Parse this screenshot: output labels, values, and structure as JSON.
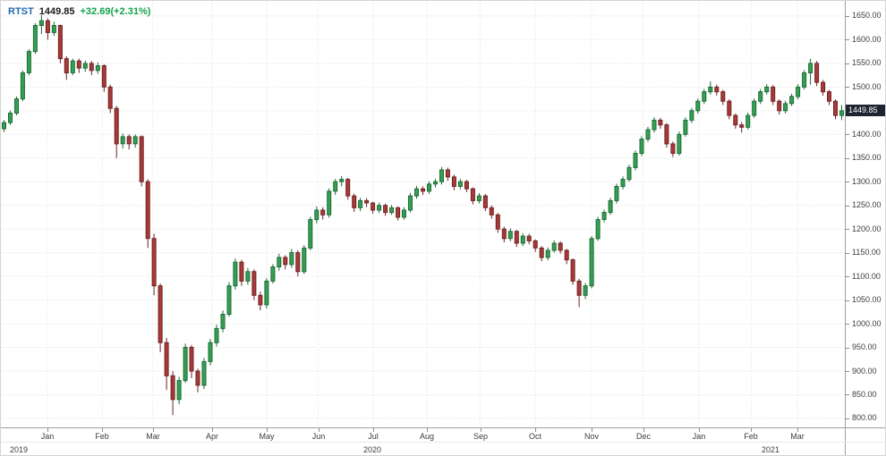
{
  "header": {
    "symbol": "RTST",
    "last": "1449.85",
    "change": "+32.69(+2.31%)"
  },
  "price_badge": "1449.85",
  "chart_data": {
    "type": "candlestick",
    "symbol": "RTST",
    "title": "RTST daily candlestick chart",
    "last_price": 1449.85,
    "change": "+32.69(+2.31%)",
    "grid": "dotted",
    "ylim": [
      781,
      1682
    ],
    "y_ticks": [
      1650,
      1600,
      1550,
      1500,
      1450,
      1400,
      1350,
      1300,
      1250,
      1200,
      1150,
      1100,
      1050,
      1000,
      950,
      900,
      850,
      800
    ],
    "x_ticks": [
      {
        "label": "Jan",
        "t": 0.055
      },
      {
        "label": "Feb",
        "t": 0.12
      },
      {
        "label": "Mar",
        "t": 0.18
      },
      {
        "label": "Apr",
        "t": 0.25
      },
      {
        "label": "May",
        "t": 0.315
      },
      {
        "label": "Jun",
        "t": 0.376
      },
      {
        "label": "Jul",
        "t": 0.441
      },
      {
        "label": "Aug",
        "t": 0.505
      },
      {
        "label": "Sep",
        "t": 0.568
      },
      {
        "label": "Oct",
        "t": 0.633
      },
      {
        "label": "Nov",
        "t": 0.7
      },
      {
        "label": "Dec",
        "t": 0.761
      },
      {
        "label": "Jan",
        "t": 0.827
      },
      {
        "label": "Feb",
        "t": 0.889
      },
      {
        "label": "Mar",
        "t": 0.944
      }
    ],
    "year_labels": [
      {
        "label": "2019",
        "t": 0.021
      },
      {
        "label": "2020",
        "t": 0.44
      },
      {
        "label": "2021",
        "t": 0.912
      }
    ],
    "colors": {
      "up": "#35a053",
      "up_border": "#1d6b35",
      "down": "#aa3a3a",
      "down_border": "#6e2222",
      "grid": "#dedede",
      "axis_text": "#3c3c3c",
      "symbol": "#1f66b5",
      "change": "#12a14b",
      "badge_bg": "#1b2430",
      "badge_text": "#ffffff"
    },
    "candles": [
      [
        1412,
        1430,
        1405,
        1425
      ],
      [
        1425,
        1450,
        1420,
        1445
      ],
      [
        1445,
        1480,
        1440,
        1475
      ],
      [
        1475,
        1535,
        1470,
        1530
      ],
      [
        1530,
        1580,
        1525,
        1575
      ],
      [
        1575,
        1635,
        1570,
        1630
      ],
      [
        1630,
        1652,
        1612,
        1640
      ],
      [
        1640,
        1645,
        1600,
        1615
      ],
      [
        1615,
        1638,
        1608,
        1630
      ],
      [
        1630,
        1632,
        1550,
        1560
      ],
      [
        1560,
        1565,
        1515,
        1530
      ],
      [
        1530,
        1560,
        1525,
        1555
      ],
      [
        1555,
        1560,
        1530,
        1540
      ],
      [
        1540,
        1556,
        1532,
        1550
      ],
      [
        1550,
        1555,
        1525,
        1535
      ],
      [
        1535,
        1552,
        1528,
        1545
      ],
      [
        1545,
        1548,
        1490,
        1500
      ],
      [
        1500,
        1505,
        1445,
        1455
      ],
      [
        1455,
        1460,
        1350,
        1380
      ],
      [
        1380,
        1402,
        1370,
        1395
      ],
      [
        1395,
        1400,
        1368,
        1380
      ],
      [
        1380,
        1400,
        1372,
        1395
      ],
      [
        1395,
        1398,
        1290,
        1300
      ],
      [
        1300,
        1305,
        1160,
        1180
      ],
      [
        1180,
        1190,
        1060,
        1080
      ],
      [
        1080,
        1085,
        940,
        960
      ],
      [
        960,
        970,
        860,
        890
      ],
      [
        890,
        900,
        807,
        840
      ],
      [
        840,
        888,
        830,
        880
      ],
      [
        880,
        958,
        875,
        950
      ],
      [
        950,
        955,
        885,
        900
      ],
      [
        900,
        905,
        855,
        870
      ],
      [
        870,
        928,
        862,
        920
      ],
      [
        920,
        968,
        912,
        960
      ],
      [
        960,
        998,
        952,
        990
      ],
      [
        990,
        1028,
        982,
        1020
      ],
      [
        1020,
        1088,
        1015,
        1080
      ],
      [
        1080,
        1138,
        1072,
        1130
      ],
      [
        1130,
        1135,
        1080,
        1090
      ],
      [
        1090,
        1118,
        1082,
        1110
      ],
      [
        1110,
        1115,
        1050,
        1060
      ],
      [
        1060,
        1068,
        1028,
        1040
      ],
      [
        1040,
        1096,
        1032,
        1090
      ],
      [
        1090,
        1126,
        1085,
        1120
      ],
      [
        1120,
        1148,
        1112,
        1140
      ],
      [
        1140,
        1145,
        1115,
        1125
      ],
      [
        1125,
        1158,
        1118,
        1150
      ],
      [
        1150,
        1155,
        1100,
        1110
      ],
      [
        1110,
        1166,
        1105,
        1160
      ],
      [
        1160,
        1226,
        1155,
        1220
      ],
      [
        1220,
        1248,
        1212,
        1240
      ],
      [
        1240,
        1246,
        1220,
        1230
      ],
      [
        1230,
        1286,
        1224,
        1280
      ],
      [
        1280,
        1306,
        1272,
        1300
      ],
      [
        1300,
        1312,
        1290,
        1305
      ],
      [
        1305,
        1308,
        1262,
        1270
      ],
      [
        1270,
        1275,
        1236,
        1245
      ],
      [
        1245,
        1266,
        1238,
        1260
      ],
      [
        1260,
        1265,
        1246,
        1255
      ],
      [
        1255,
        1258,
        1232,
        1240
      ],
      [
        1240,
        1256,
        1234,
        1250
      ],
      [
        1250,
        1254,
        1228,
        1235
      ],
      [
        1235,
        1251,
        1230,
        1245
      ],
      [
        1245,
        1248,
        1218,
        1225
      ],
      [
        1225,
        1246,
        1220,
        1240
      ],
      [
        1240,
        1276,
        1235,
        1270
      ],
      [
        1270,
        1291,
        1264,
        1285
      ],
      [
        1285,
        1290,
        1272,
        1280
      ],
      [
        1280,
        1301,
        1274,
        1295
      ],
      [
        1295,
        1306,
        1288,
        1300
      ],
      [
        1300,
        1331,
        1294,
        1325
      ],
      [
        1325,
        1330,
        1302,
        1310
      ],
      [
        1310,
        1315,
        1282,
        1290
      ],
      [
        1290,
        1306,
        1284,
        1300
      ],
      [
        1300,
        1304,
        1278,
        1285
      ],
      [
        1285,
        1288,
        1252,
        1260
      ],
      [
        1260,
        1276,
        1254,
        1270
      ],
      [
        1270,
        1274,
        1238,
        1245
      ],
      [
        1245,
        1250,
        1222,
        1230
      ],
      [
        1230,
        1234,
        1192,
        1200
      ],
      [
        1200,
        1205,
        1172,
        1180
      ],
      [
        1180,
        1201,
        1174,
        1195
      ],
      [
        1195,
        1198,
        1162,
        1170
      ],
      [
        1170,
        1191,
        1164,
        1185
      ],
      [
        1185,
        1190,
        1168,
        1175
      ],
      [
        1175,
        1178,
        1152,
        1160
      ],
      [
        1160,
        1164,
        1132,
        1140
      ],
      [
        1140,
        1161,
        1134,
        1155
      ],
      [
        1155,
        1176,
        1150,
        1170
      ],
      [
        1170,
        1174,
        1148,
        1155
      ],
      [
        1155,
        1158,
        1126,
        1135
      ],
      [
        1135,
        1138,
        1082,
        1090
      ],
      [
        1090,
        1095,
        1035,
        1060
      ],
      [
        1060,
        1086,
        1052,
        1080
      ],
      [
        1080,
        1185,
        1075,
        1180
      ],
      [
        1180,
        1226,
        1175,
        1220
      ],
      [
        1220,
        1241,
        1214,
        1235
      ],
      [
        1235,
        1266,
        1230,
        1260
      ],
      [
        1260,
        1296,
        1254,
        1290
      ],
      [
        1290,
        1311,
        1284,
        1305
      ],
      [
        1305,
        1336,
        1300,
        1330
      ],
      [
        1330,
        1366,
        1324,
        1360
      ],
      [
        1360,
        1396,
        1354,
        1390
      ],
      [
        1390,
        1416,
        1384,
        1410
      ],
      [
        1410,
        1436,
        1404,
        1430
      ],
      [
        1430,
        1435,
        1412,
        1420
      ],
      [
        1420,
        1424,
        1372,
        1380
      ],
      [
        1380,
        1385,
        1352,
        1360
      ],
      [
        1360,
        1406,
        1355,
        1400
      ],
      [
        1400,
        1436,
        1395,
        1430
      ],
      [
        1430,
        1456,
        1424,
        1450
      ],
      [
        1450,
        1476,
        1444,
        1470
      ],
      [
        1470,
        1496,
        1464,
        1490
      ],
      [
        1490,
        1512,
        1484,
        1500
      ],
      [
        1500,
        1505,
        1482,
        1490
      ],
      [
        1490,
        1494,
        1462,
        1470
      ],
      [
        1470,
        1474,
        1432,
        1440
      ],
      [
        1440,
        1444,
        1412,
        1420
      ],
      [
        1420,
        1426,
        1404,
        1415
      ],
      [
        1415,
        1446,
        1410,
        1440
      ],
      [
        1440,
        1476,
        1435,
        1470
      ],
      [
        1470,
        1496,
        1464,
        1490
      ],
      [
        1490,
        1506,
        1484,
        1500
      ],
      [
        1500,
        1504,
        1462,
        1470
      ],
      [
        1470,
        1474,
        1442,
        1450
      ],
      [
        1450,
        1471,
        1444,
        1465
      ],
      [
        1465,
        1486,
        1460,
        1480
      ],
      [
        1480,
        1506,
        1474,
        1500
      ],
      [
        1500,
        1536,
        1495,
        1530
      ],
      [
        1530,
        1560,
        1505,
        1550
      ],
      [
        1550,
        1555,
        1502,
        1510
      ],
      [
        1510,
        1515,
        1482,
        1490
      ],
      [
        1490,
        1494,
        1462,
        1470
      ],
      [
        1470,
        1474,
        1432,
        1440
      ],
      [
        1440,
        1462,
        1430,
        1449.85
      ]
    ]
  }
}
